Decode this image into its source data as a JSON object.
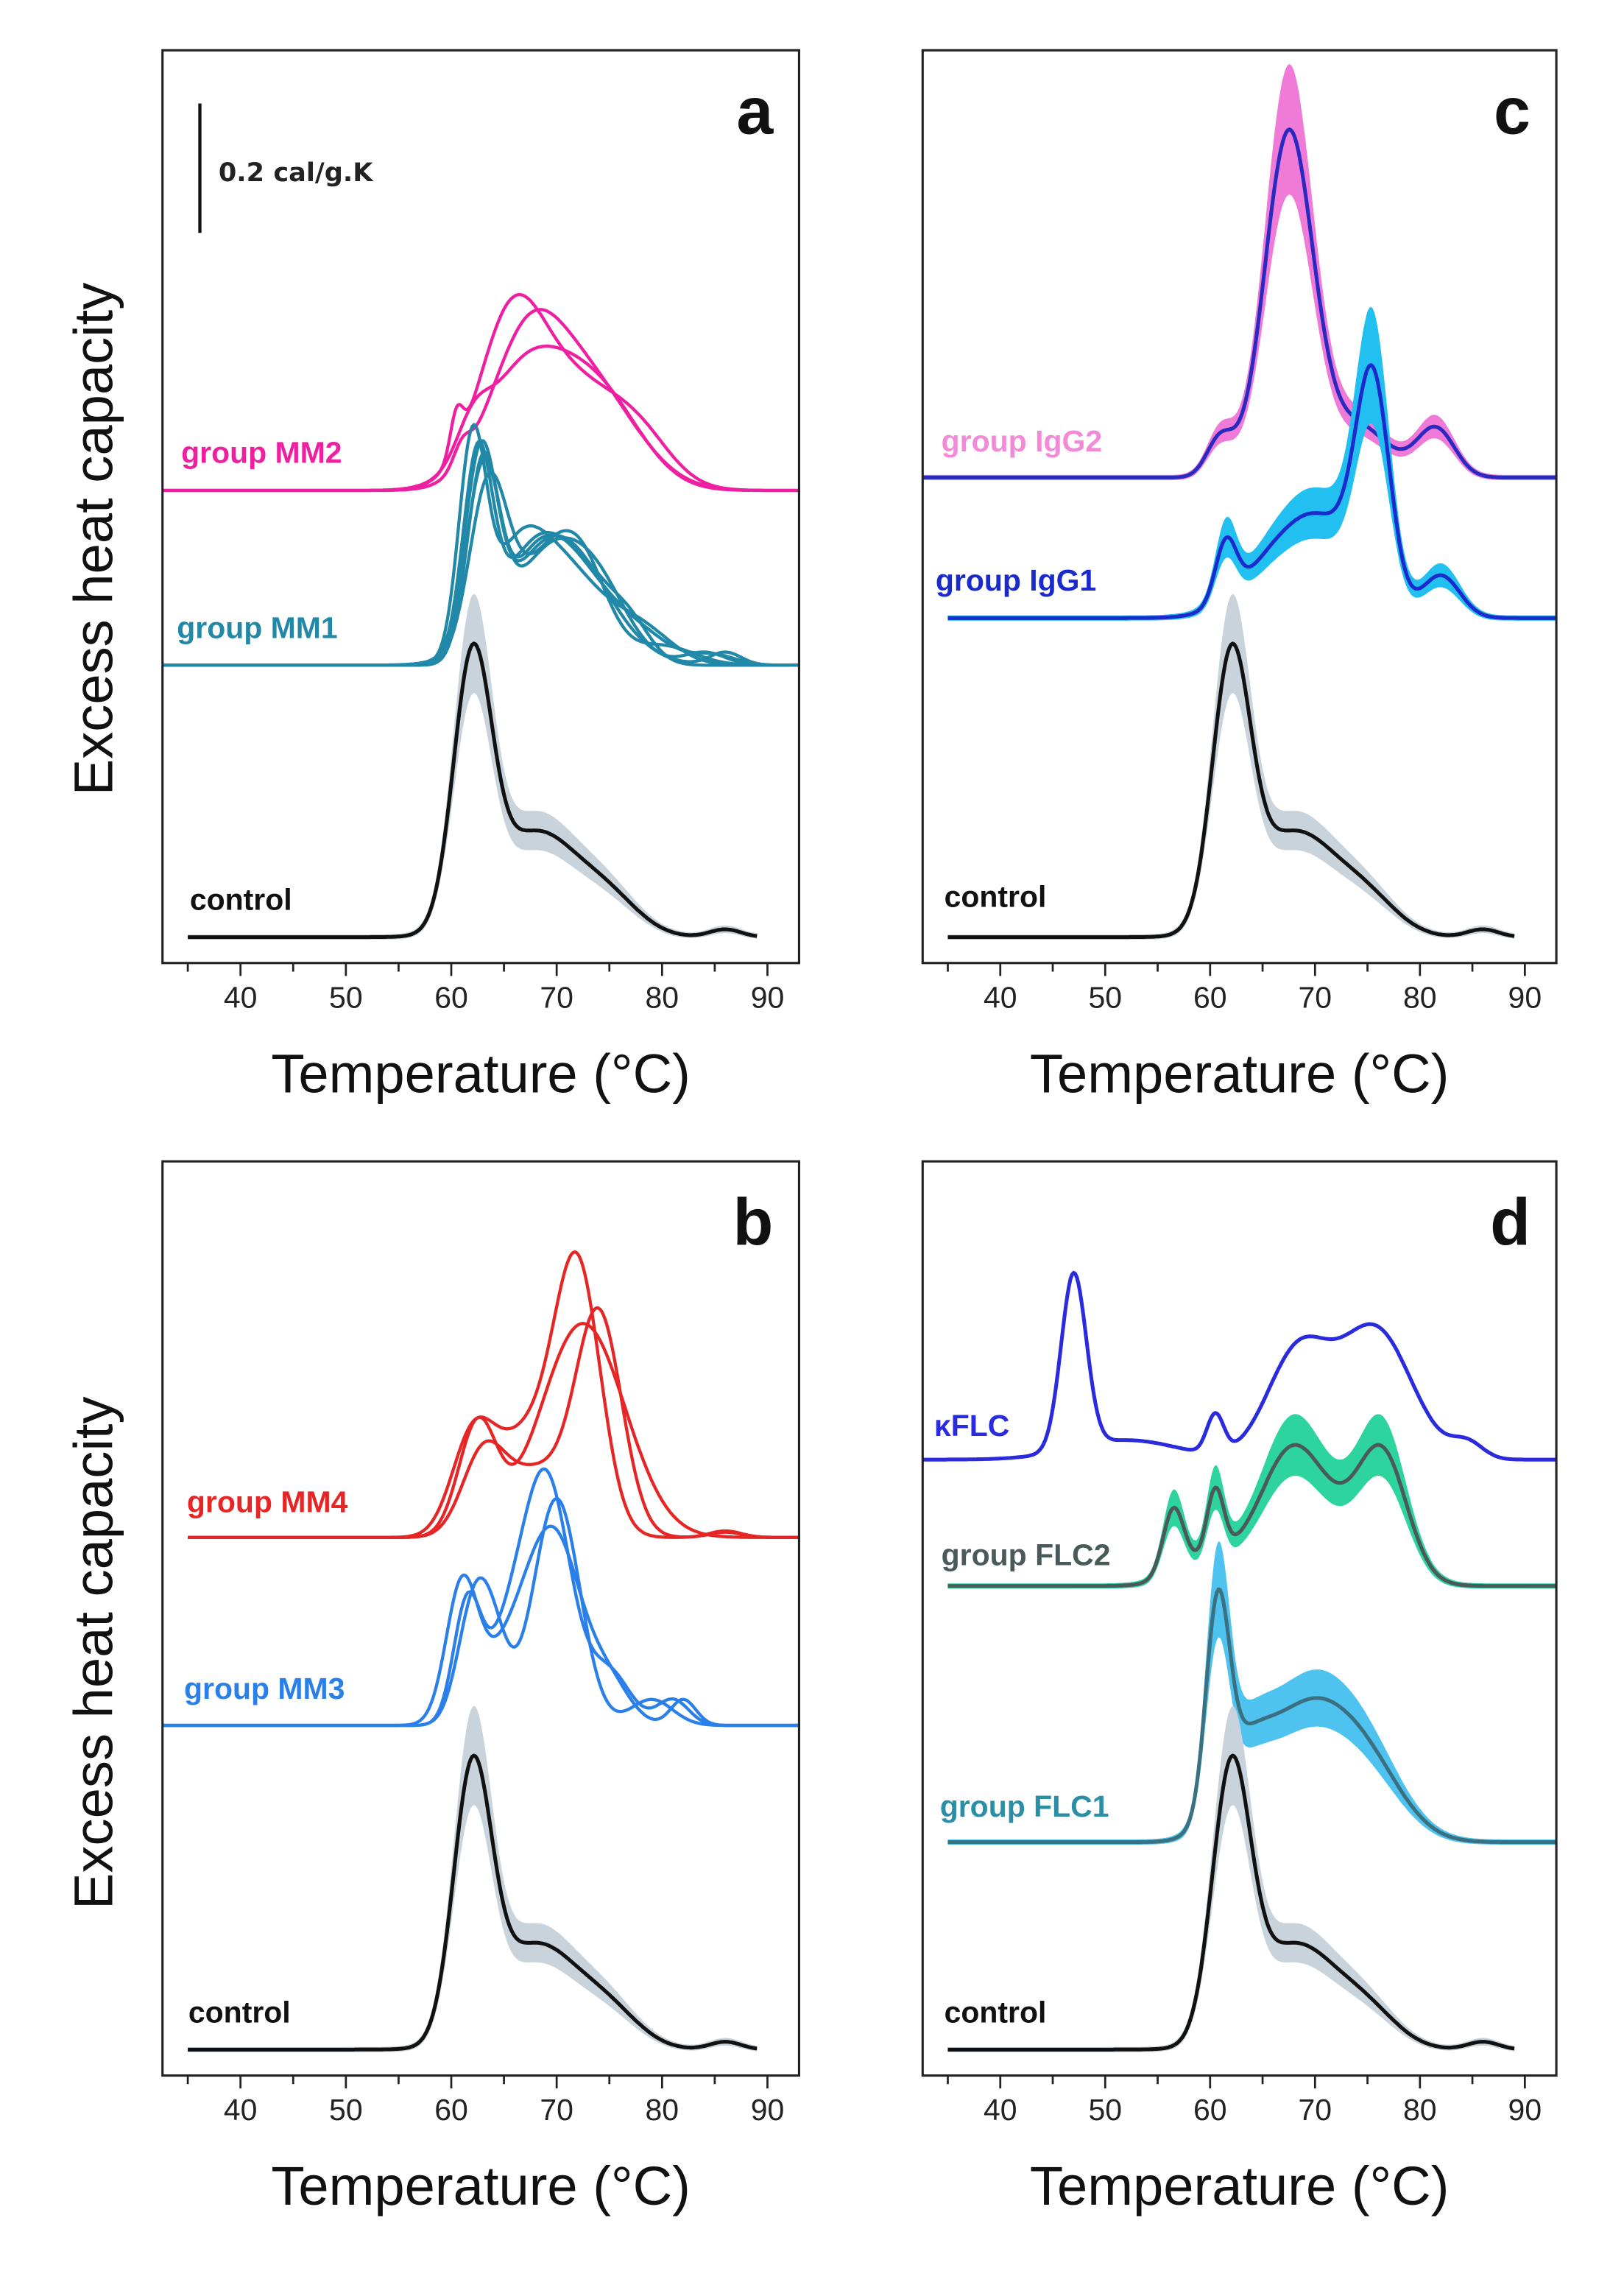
{
  "chart_data": [
    {
      "panel": "a",
      "type": "line",
      "xlabel": "Temperature (°C)",
      "ylabel": "Excess heat capacity",
      "xlim": [
        32.6,
        93
      ],
      "ylim": [
        0,
        1.41
      ],
      "xticks": [
        "40",
        "50",
        "60",
        "70",
        "80",
        "90"
      ],
      "scale_bar": {
        "label": "0.2 cal/g.K",
        "value": 0.2
      },
      "series": [
        {
          "label": "group MM2",
          "color": "#ee1fa0",
          "baseline": 0.73,
          "x_range": [
            32.6,
            93
          ],
          "curves": [
            [
              [
                60.5,
                0.06,
                0.6
              ],
              [
                65.5,
                0.2,
                3
              ],
              [
                71,
                0.17,
                5
              ],
              [
                78,
                0.05,
                3
              ]
            ],
            [
              [
                61,
                0.03,
                0.8
              ],
              [
                67,
                0.2,
                3.5
              ],
              [
                73,
                0.16,
                4.5
              ]
            ],
            [
              [
                62,
                0.05,
                1.5
              ],
              [
                67,
                0.18,
                4
              ],
              [
                74,
                0.14,
                4
              ]
            ]
          ]
        },
        {
          "label": "group MM1",
          "color": "#2188a8",
          "baseline": 0.46,
          "x_range": [
            32.6,
            93
          ],
          "curves": [
            [
              [
                62.5,
                0.3,
                1.4
              ],
              [
                67,
                0.12,
                3
              ],
              [
                71.5,
                0.14,
                3.5
              ],
              [
                78,
                0.04,
                3
              ],
              [
                85,
                0.015,
                2
              ]
            ],
            [
              [
                63,
                0.28,
                1.6
              ],
              [
                69,
                0.16,
                3.5
              ],
              [
                74,
                0.1,
                3
              ],
              [
                84,
                0.02,
                2
              ]
            ],
            [
              [
                62,
                0.32,
                1.3
              ],
              [
                66,
                0.1,
                2.5
              ],
              [
                70,
                0.16,
                4
              ],
              [
                78,
                0.05,
                3
              ]
            ],
            [
              [
                63.5,
                0.26,
                1.8
              ],
              [
                68.5,
                0.14,
                3
              ],
              [
                72.5,
                0.13,
                2.5
              ],
              [
                80,
                0.03,
                3
              ]
            ],
            [
              [
                62.8,
                0.29,
                1.5
              ],
              [
                70,
                0.2,
                4.5
              ],
              [
                86,
                0.02,
                1.5
              ]
            ],
            [
              [
                63,
                0.3,
                1.5
              ],
              [
                67.5,
                0.13,
                2.5
              ],
              [
                72,
                0.15,
                3
              ],
              [
                77,
                0.05,
                2
              ]
            ]
          ]
        },
        {
          "label": "control",
          "color": "#111111",
          "band_color": "#c9d3dc",
          "band": 0.16,
          "baseline": 0.04,
          "x_range": [
            35,
            89
          ],
          "curves": [
            [
              [
                62,
                0.4,
                1.8
              ],
              [
                68,
                0.16,
                4
              ],
              [
                75,
                0.05,
                3
              ],
              [
                86,
                0.012,
                1.5
              ]
            ]
          ]
        }
      ]
    },
    {
      "panel": "b",
      "type": "line",
      "xlabel": "Temperature (°C)",
      "ylabel": "Excess heat capacity",
      "xlim": [
        32.6,
        93
      ],
      "ylim": [
        0,
        1.41
      ],
      "xticks": [
        "40",
        "50",
        "60",
        "70",
        "80",
        "90"
      ],
      "series": [
        {
          "label": "group MM4",
          "color": "#e62525",
          "baseline": 0.83,
          "x_range": [
            35,
            93
          ],
          "curves": [
            [
              [
                62,
                0.14,
                2
              ],
              [
                67,
                0.15,
                3
              ],
              [
                72,
                0.4,
                2.2
              ],
              [
                86,
                0.01,
                1.5
              ]
            ],
            [
              [
                62.5,
                0.17,
                1.8
              ],
              [
                72.5,
                0.33,
                4
              ]
            ],
            [
              [
                63,
                0.12,
                2
              ],
              [
                68,
                0.1,
                3
              ],
              [
                74,
                0.34,
                2.2
              ],
              [
                86,
                0.008,
                1.5
              ]
            ]
          ]
        },
        {
          "label": "group MM3",
          "color": "#2a80e8",
          "baseline": 0.54,
          "x_range": [
            32.6,
            93
          ],
          "curves": [
            [
              [
                61.5,
                0.18,
                1.3
              ],
              [
                65,
                0.1,
                2
              ],
              [
                69,
                0.38,
                2.3
              ],
              [
                75,
                0.08,
                2
              ],
              [
                81,
                0.04,
                1.5
              ]
            ],
            [
              [
                62,
                0.16,
                1.5
              ],
              [
                64,
                0.12,
                1.5
              ],
              [
                70,
                0.35,
                2.2
              ],
              [
                79,
                0.04,
                2
              ]
            ],
            [
              [
                61,
                0.2,
                1.5
              ],
              [
                66,
                0.12,
                3
              ],
              [
                70,
                0.25,
                2.5
              ],
              [
                75,
                0.06,
                2
              ],
              [
                82,
                0.04,
                1.2
              ]
            ]
          ]
        },
        {
          "label": "control",
          "color": "#111111",
          "band_color": "#c9d3dc",
          "band": 0.16,
          "baseline": 0.04,
          "x_range": [
            35,
            89
          ],
          "curves": [
            [
              [
                62,
                0.4,
                1.8
              ],
              [
                68,
                0.16,
                4
              ],
              [
                75,
                0.05,
                3
              ],
              [
                86,
                0.012,
                1.5
              ]
            ]
          ]
        }
      ]
    },
    {
      "panel": "c",
      "type": "line",
      "xlabel": "Temperature (°C)",
      "ylabel": "",
      "xlim": [
        32.6,
        93
      ],
      "ylim": [
        0,
        1.41
      ],
      "xticks": [
        "40",
        "50",
        "60",
        "70",
        "80",
        "90"
      ],
      "series": [
        {
          "label": "group IgG2",
          "color": "#2a2ac0",
          "label_color": "#f28ad8",
          "band_color": "#f07ad8",
          "band": 0.18,
          "baseline": 0.75,
          "x_range": [
            32.6,
            93
          ],
          "curves": [
            [
              [
                61,
                0.06,
                1.3
              ],
              [
                67.5,
                0.53,
                2.3
              ],
              [
                74,
                0.08,
                3
              ],
              [
                81.5,
                0.075,
                1.8
              ]
            ]
          ]
        },
        {
          "label": "group IgG1",
          "color": "#1a2acc",
          "band_color": "#22c0f0",
          "band": 0.22,
          "baseline": 0.533,
          "x_range": [
            35,
            93
          ],
          "curves": [
            [
              [
                61.5,
                0.09,
                1.0
              ],
              [
                66,
                0.07,
                3.5
              ],
              [
                71,
                0.13,
                3.5
              ],
              [
                75.5,
                0.33,
                1.6
              ],
              [
                82,
                0.065,
                1.8
              ]
            ]
          ]
        },
        {
          "label": "control",
          "color": "#111111",
          "band_color": "#c9d3dc",
          "band": 0.16,
          "baseline": 0.04,
          "x_range": [
            35,
            89
          ],
          "curves": [
            [
              [
                62,
                0.4,
                1.8
              ],
              [
                68,
                0.16,
                4
              ],
              [
                75,
                0.05,
                3
              ],
              [
                86,
                0.012,
                1.5
              ]
            ]
          ]
        }
      ]
    },
    {
      "panel": "d",
      "type": "line",
      "xlabel": "Temperature (°C)",
      "ylabel": "",
      "xlim": [
        32.6,
        93
      ],
      "ylim": [
        0,
        1.41
      ],
      "xticks": [
        "40",
        "50",
        "60",
        "70",
        "80",
        "90"
      ],
      "series": [
        {
          "label": "κFLC",
          "color": "#2a2adf",
          "baseline": 0.95,
          "x_range": [
            32.6,
            93
          ],
          "curves": [
            [
              [
                47,
                0.27,
                1.2
              ],
              [
                52,
                0.03,
                5
              ],
              [
                60.5,
                0.06,
                0.8
              ],
              [
                68.5,
                0.17,
                3
              ],
              [
                75,
                0.15,
                3
              ],
              [
                78,
                0.07,
                3
              ],
              [
                84.5,
                0.025,
                1.5
              ]
            ]
          ]
        },
        {
          "label": "group FLC2",
          "color": "#4a5a5a",
          "band_color": "#2ed49e",
          "band": 0.2,
          "baseline": 0.755,
          "x_range": [
            35,
            93
          ],
          "curves": [
            [
              [
                56.5,
                0.1,
                1.0
              ],
              [
                60.5,
                0.1,
                0.8
              ],
              [
                60,
                0.04,
                3
              ],
              [
                67.5,
                0.17,
                3
              ],
              [
                72,
                0.08,
                4
              ],
              [
                76.5,
                0.17,
                2.3
              ]
            ]
          ]
        },
        {
          "label": "group FLC1",
          "color": "#3a7080",
          "label_color": "#2a8fa6",
          "band_color": "#4fc3f0",
          "band": 0.18,
          "baseline": 0.36,
          "x_range": [
            35,
            93
          ],
          "curves": [
            [
              [
                60.7,
                0.3,
                1.1
              ],
              [
                63,
                0.1,
                2.5
              ],
              [
                69,
                0.19,
                4
              ],
              [
                75,
                0.1,
                3.5
              ]
            ]
          ]
        },
        {
          "label": "control",
          "color": "#111111",
          "band_color": "#c9d3dc",
          "band": 0.16,
          "baseline": 0.04,
          "x_range": [
            35,
            89
          ],
          "curves": [
            [
              [
                62,
                0.4,
                1.8
              ],
              [
                68,
                0.16,
                4
              ],
              [
                75,
                0.05,
                3
              ],
              [
                86,
                0.012,
                1.5
              ]
            ]
          ]
        }
      ]
    }
  ]
}
